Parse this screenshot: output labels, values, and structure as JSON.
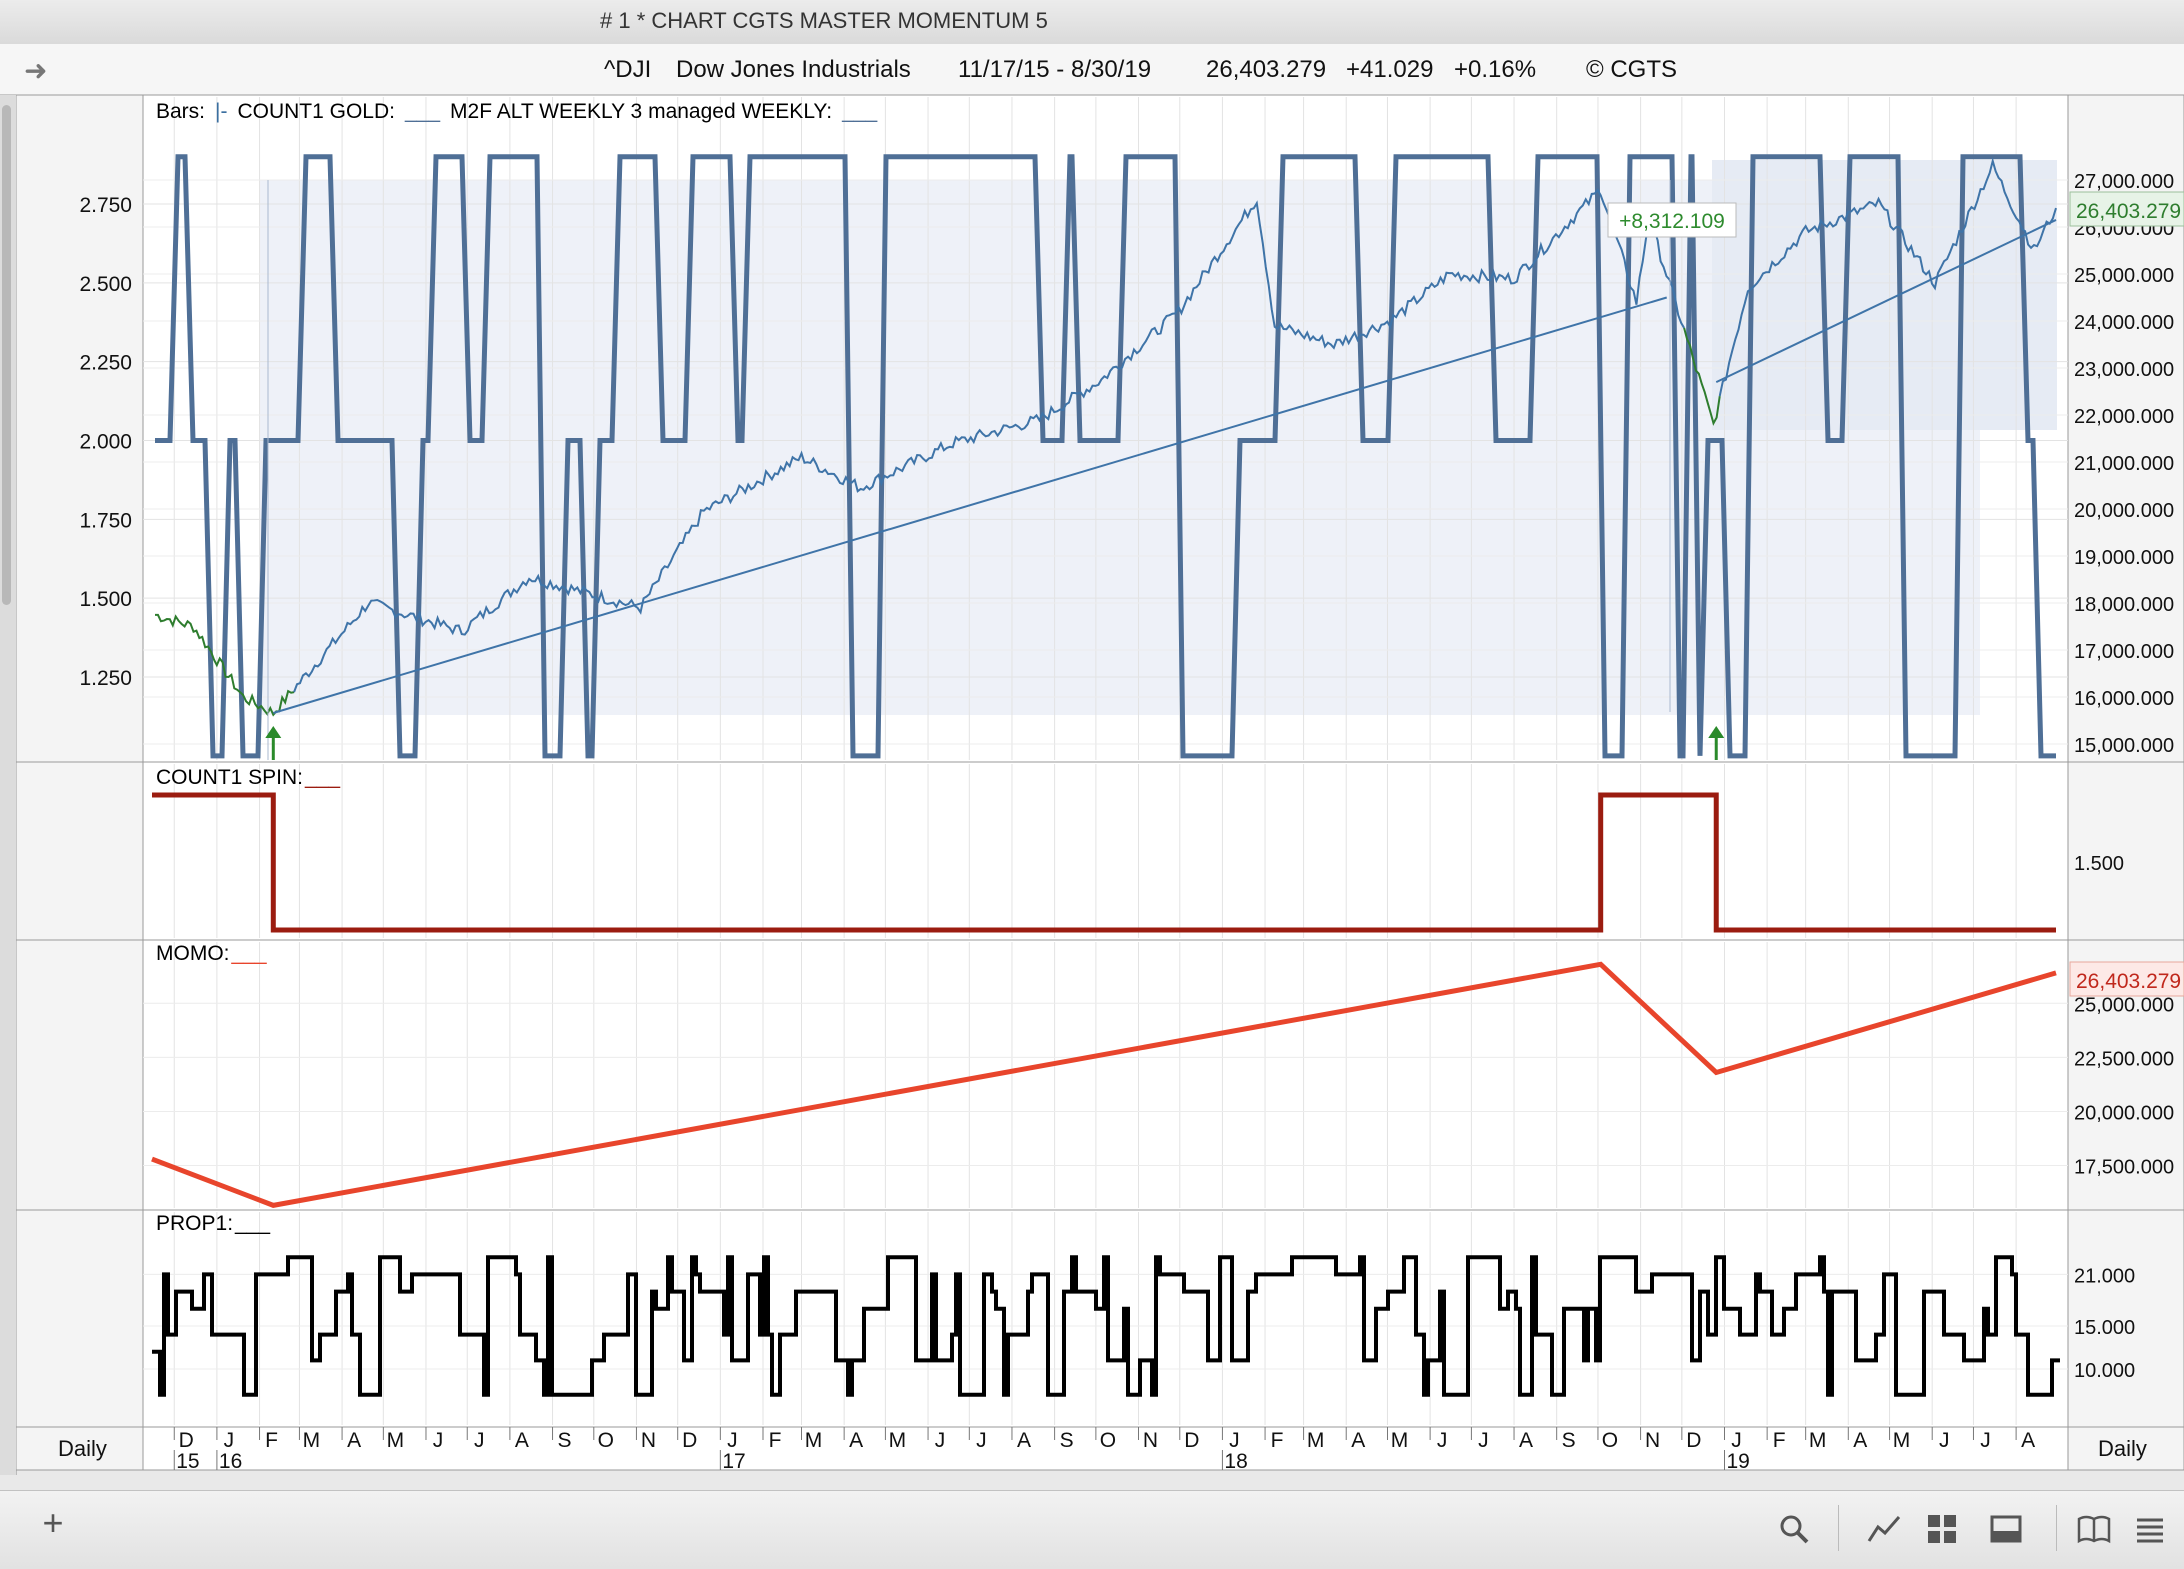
{
  "window": {
    "title": "# 1 * CHART CGTS MASTER MOMENTUM 5"
  },
  "header": {
    "symbol": "^DJI",
    "name": "Dow Jones Industrials",
    "date_range": "11/17/15 - 8/30/19",
    "last_price": "26,403.279",
    "change": "+41.029",
    "change_pct": "+0.16%",
    "copyright": "© CGTS"
  },
  "panes": {
    "main": {
      "legend": [
        {
          "text": "Bars:",
          "color": "#000000"
        },
        {
          "text": "|-",
          "color": "#3b6fa0"
        },
        {
          "text": "COUNT1 GOLD:",
          "color": "#000000"
        },
        {
          "text": "___",
          "color": "#4f6f96"
        },
        {
          "text": "M2F ALT WEEKLY 3 managed WEEKLY:",
          "color": "#000000"
        },
        {
          "text": "___",
          "color": "#4f6f96"
        }
      ],
      "annotation": "+8,312.109",
      "price_tag": "26,403.279"
    },
    "spin": {
      "legend": "COUNT1 SPIN:",
      "legend_line": "___"
    },
    "momo": {
      "legend": "MOMO:",
      "legend_line": "___",
      "price_tag": "26,403.279"
    },
    "prop": {
      "legend": "PROP1:",
      "legend_line": "___"
    }
  },
  "timeaxis": {
    "left_label": "Daily",
    "right_label": "Daily",
    "months": [
      "D",
      "J",
      "F",
      "M",
      "A",
      "M",
      "J",
      "J",
      "A",
      "S",
      "O",
      "N",
      "D",
      "J",
      "F",
      "M",
      "A",
      "M",
      "J",
      "J",
      "A",
      "S",
      "O",
      "N",
      "D",
      "J",
      "F",
      "M",
      "A",
      "M",
      "J",
      "J",
      "A",
      "S",
      "O",
      "N",
      "D",
      "J",
      "F",
      "M",
      "A",
      "M",
      "J",
      "J",
      "A"
    ],
    "years": [
      {
        "label": "15",
        "month_index": 0
      },
      {
        "label": "16",
        "month_index": 1
      },
      {
        "label": "17",
        "month_index": 13
      },
      {
        "label": "18",
        "month_index": 25
      },
      {
        "label": "19",
        "month_index": 37
      }
    ]
  },
  "toolbar": {
    "add_label": "+",
    "icons": [
      "search-icon",
      "line-chart-icon",
      "grid-icon",
      "panel-icon",
      "book-icon",
      "list-icon"
    ]
  },
  "chart_data": [
    {
      "type": "line",
      "name": "main",
      "series": [
        {
          "name": "^DJI",
          "color": "#3f74a8",
          "x": [
            "2015-11-17",
            "2015-12-15",
            "2016-01-20",
            "2016-02-11",
            "2016-04-20",
            "2016-06-27",
            "2016-08-15",
            "2016-11-04",
            "2016-12-20",
            "2017-03-01",
            "2017-04-13",
            "2017-06-19",
            "2017-08-21",
            "2017-10-05",
            "2017-11-30",
            "2018-01-26",
            "2018-02-08",
            "2018-03-23",
            "2018-05-03",
            "2018-06-15",
            "2018-08-01",
            "2018-10-03",
            "2018-10-29",
            "2018-11-07",
            "2018-12-24",
            "2019-01-18",
            "2019-03-01",
            "2019-04-23",
            "2019-06-03",
            "2019-07-15",
            "2019-08-14",
            "2019-08-30"
          ],
          "y": [
            17750,
            17500,
            16000,
            15660,
            18000,
            17400,
            18550,
            17900,
            19950,
            21100,
            20450,
            21400,
            21900,
            22750,
            24200,
            26600,
            23900,
            23500,
            24000,
            25000,
            24900,
            26800,
            24400,
            26200,
            21800,
            24700,
            25900,
            26500,
            24800,
            27300,
            25500,
            26403.279
          ]
        },
        {
          "name": "COUNT1 GOLD",
          "color": "#4f6f96",
          "x_label": "level",
          "levels_note": "step line alternating between 1.0, 2.0 and 2.9",
          "y_levels": [
            1.0,
            2.0,
            2.9
          ]
        },
        {
          "name": "trend",
          "color": "#3f74a8",
          "x": [
            "2016-02-11",
            "2018-11-20",
            "2018-12-26",
            "2019-08-30"
          ],
          "y": [
            15660,
            24500,
            22700,
            26150
          ]
        }
      ],
      "y_left": {
        "ticks": [
          1.25,
          1.5,
          1.75,
          2.0,
          2.25,
          2.5,
          2.75
        ],
        "labels": [
          "1.250",
          "1.500",
          "1.750",
          "2.000",
          "2.250",
          "2.500",
          "2.750"
        ]
      },
      "y_right": {
        "ticks": [
          15000,
          16000,
          17000,
          18000,
          19000,
          20000,
          21000,
          22000,
          23000,
          24000,
          25000,
          26000,
          27000
        ],
        "labels": [
          "15,000.000",
          "16,000.000",
          "17,000.000",
          "18,000.000",
          "19,000.000",
          "20,000.000",
          "21,000.000",
          "22,000.000",
          "23,000.000",
          "24,000.000",
          "25,000.000",
          "26,000.000",
          "27,000.000"
        ]
      },
      "markers": [
        {
          "date": "2016-02-11",
          "kind": "up-arrow",
          "color": "#2a8a2a"
        },
        {
          "date": "2018-12-26",
          "kind": "up-arrow",
          "color": "#2a8a2a"
        }
      ]
    },
    {
      "type": "line",
      "name": "COUNT1 SPIN",
      "series": [
        {
          "name": "COUNT1 SPIN",
          "color": "#9b1c10",
          "x": [
            "2015-12-01",
            "2016-02-11",
            "2016-02-11",
            "2018-10-03",
            "2018-10-03",
            "2018-12-26",
            "2018-12-26",
            "2019-08-30"
          ],
          "y": [
            2,
            2,
            1,
            1,
            2,
            2,
            1,
            1
          ]
        }
      ],
      "y_right": {
        "ticks": [
          1.5
        ],
        "labels": [
          "1.500"
        ]
      }
    },
    {
      "type": "line",
      "name": "MOMO",
      "series": [
        {
          "name": "MOMO",
          "color": "#e8452c",
          "x": [
            "2015-12-01",
            "2016-02-11",
            "2018-10-03",
            "2018-12-26",
            "2019-08-30"
          ],
          "y": [
            17800,
            15660,
            26800,
            21800,
            26403.279
          ]
        }
      ],
      "y_right": {
        "ticks": [
          17500,
          20000,
          22500,
          25000
        ],
        "labels": [
          "17,500.000",
          "20,000.000",
          "22,500.000",
          "25,000.000"
        ]
      }
    },
    {
      "type": "line",
      "name": "PROP1",
      "series": [
        {
          "name": "PROP1",
          "color": "#000000",
          "range": [
            5,
            25
          ],
          "note": "oscillating step values between about 5 and 25"
        }
      ],
      "y_right": {
        "ticks": [
          10,
          15,
          21
        ],
        "labels": [
          "10.000",
          "15.000",
          "21.000"
        ]
      }
    }
  ]
}
